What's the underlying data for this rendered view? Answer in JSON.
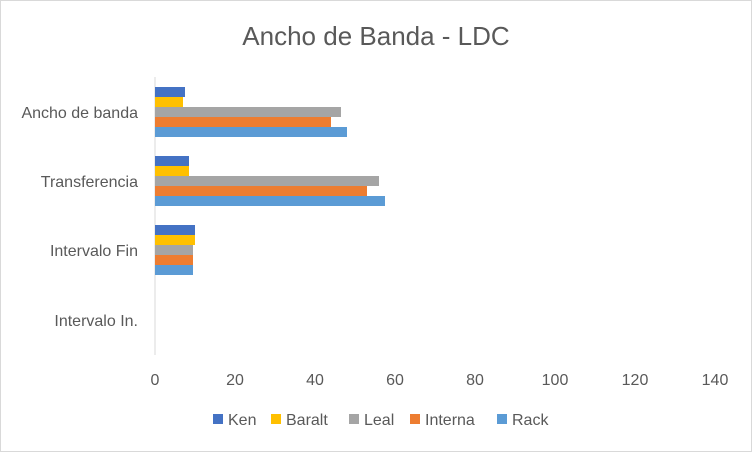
{
  "chart_data": {
    "type": "bar",
    "orientation": "horizontal",
    "title": "Ancho de Banda - LDC",
    "categories": [
      "Ancho de banda",
      "Transferencia",
      "Intervalo Fin",
      "Intervalo In."
    ],
    "xlim": [
      0,
      140
    ],
    "xticks": [
      0,
      20,
      40,
      60,
      80,
      100,
      120,
      140
    ],
    "grid": false,
    "legend_position": "bottom",
    "series": [
      {
        "name": "Ken",
        "color": "#4472c4",
        "values": [
          7.5,
          8.5,
          10,
          0
        ]
      },
      {
        "name": "Baralt",
        "color": "#ffc000",
        "values": [
          7,
          8.5,
          10,
          0
        ]
      },
      {
        "name": "Leal",
        "color": "#a5a5a5",
        "values": [
          46.5,
          56,
          9.5,
          0
        ]
      },
      {
        "name": "Interna",
        "color": "#ed7d31",
        "values": [
          44,
          53,
          9.5,
          0
        ]
      },
      {
        "name": "Rack",
        "color": "#5b9bd5",
        "values": [
          48,
          57.5,
          9.5,
          0
        ]
      }
    ]
  }
}
